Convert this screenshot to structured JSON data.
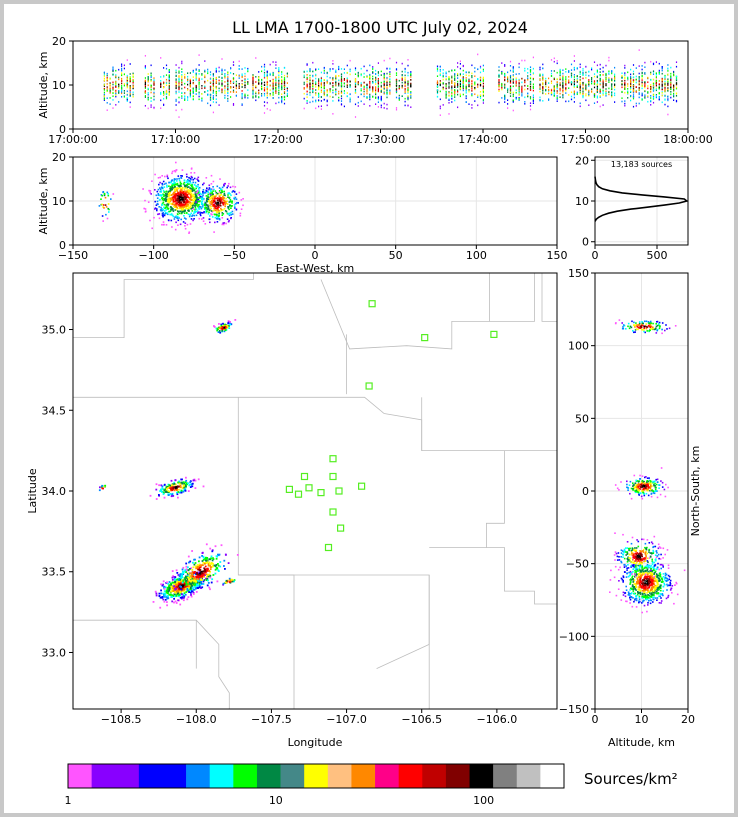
{
  "title": "LL LMA 1700-1800 UTC July 02, 2024",
  "source_count_label": "13,183 sources",
  "colorbar": {
    "label": "Sources/km²",
    "tick_labels": [
      "1",
      "10",
      "100"
    ],
    "tick_values": [
      1,
      10,
      100
    ],
    "colors": [
      "#ff55ff",
      "#8800ff",
      "#8800ff",
      "#0000ff",
      "#0000ff",
      "#0088ff",
      "#00ffff",
      "#00ff00",
      "#008844",
      "#448888",
      "#ffff00",
      "#ffc080",
      "#ff8800",
      "#ff0088",
      "#ff0000",
      "#c00000",
      "#800000",
      "#000000",
      "#808080",
      "#c0c0c0",
      "#ffffff"
    ]
  },
  "chart_data": [
    {
      "name_id": "time-height",
      "type": "scatter",
      "xlabel": "",
      "ylabel": "Altitude, km",
      "x_tick_labels": [
        "17:00:00",
        "17:10:00",
        "17:20:00",
        "17:30:00",
        "17:40:00",
        "17:50:00",
        "18:00:00"
      ],
      "x_range_minutes": [
        0,
        60
      ],
      "ylim": [
        0,
        20
      ],
      "y_ticks": [
        0,
        10,
        20
      ],
      "active_minutes": [
        [
          3,
          6
        ],
        [
          7,
          8
        ],
        [
          8.5,
          9.5
        ],
        [
          10,
          17
        ],
        [
          17.5,
          21
        ],
        [
          22.5,
          27
        ],
        [
          27.5,
          31
        ],
        [
          31.5,
          33
        ],
        [
          35.5,
          40
        ],
        [
          41.5,
          45
        ],
        [
          45.5,
          53
        ],
        [
          53.5,
          59
        ]
      ]
    },
    {
      "name_id": "ew-height",
      "type": "scatter",
      "xlabel": "East-West, km",
      "ylabel": "Altitude, km",
      "xlim": [
        -150,
        150
      ],
      "x_ticks": [
        -150,
        -100,
        -50,
        0,
        50,
        100,
        150
      ],
      "ylim": [
        0,
        20
      ],
      "y_ticks": [
        0,
        10,
        20
      ],
      "clusters": [
        {
          "x": -83,
          "z": 10.5,
          "sx": 8,
          "sz": 2.5,
          "n": 900
        },
        {
          "x": -60,
          "z": 9.5,
          "sx": 6,
          "sz": 2,
          "n": 350
        },
        {
          "x": -130,
          "z": 9.5,
          "sx": 2,
          "sz": 1.5,
          "n": 30
        }
      ]
    },
    {
      "name_id": "altitude-histogram",
      "type": "line",
      "xlim": [
        0,
        750
      ],
      "x_ticks": [
        0,
        500
      ],
      "ylim": [
        0,
        20
      ],
      "y_ticks": [
        0,
        10,
        20
      ],
      "z": [
        5,
        5.5,
        6,
        6.5,
        7,
        7.5,
        8,
        8.5,
        9,
        9.5,
        10,
        10.5,
        11,
        11.5,
        12,
        12.5,
        13,
        13.5,
        14,
        14.5,
        15,
        16
      ],
      "count": [
        0,
        10,
        30,
        60,
        110,
        180,
        290,
        430,
        560,
        680,
        740,
        720,
        560,
        380,
        220,
        120,
        60,
        30,
        15,
        8,
        4,
        0
      ]
    },
    {
      "name_id": "plan-view",
      "type": "scatter",
      "xlabel": "Longitude",
      "ylabel": "Latitude",
      "xlim": [
        -108.82,
        -105.6
      ],
      "x_ticks": [
        -108.5,
        -108.0,
        -107.5,
        -107.0,
        -106.5,
        -106.0
      ],
      "x_tick_labels": [
        "−108.5",
        "−108.0",
        "−107.5",
        "−107.0",
        "−106.5",
        "−106.0"
      ],
      "ylim": [
        32.65,
        35.35
      ],
      "y_ticks": [
        33.0,
        33.5,
        34.0,
        34.5,
        35.0
      ],
      "y_tick_labels": [
        "33.0",
        "33.5",
        "34.0",
        "34.5",
        "35.0"
      ],
      "stations": [
        [
          -106.83,
          35.16
        ],
        [
          -106.48,
          34.95
        ],
        [
          -106.02,
          34.97
        ],
        [
          -106.85,
          34.65
        ],
        [
          -107.09,
          34.2
        ],
        [
          -107.28,
          34.09
        ],
        [
          -107.09,
          34.09
        ],
        [
          -107.38,
          34.01
        ],
        [
          -107.25,
          34.02
        ],
        [
          -107.32,
          33.98
        ],
        [
          -107.17,
          33.99
        ],
        [
          -107.05,
          34.0
        ],
        [
          -106.9,
          34.03
        ],
        [
          -107.09,
          33.87
        ],
        [
          -107.04,
          33.77
        ],
        [
          -107.12,
          33.65
        ]
      ],
      "clusters": [
        {
          "lon": -108.1,
          "lat": 33.41,
          "slon": 0.06,
          "slat": 0.04,
          "n": 500
        },
        {
          "lon": -107.97,
          "lat": 33.5,
          "slon": 0.07,
          "slat": 0.06,
          "n": 300
        },
        {
          "lon": -108.14,
          "lat": 34.02,
          "slon": 0.05,
          "slat": 0.025,
          "n": 170
        },
        {
          "lon": -107.82,
          "lat": 35.01,
          "slon": 0.025,
          "slat": 0.015,
          "n": 70
        },
        {
          "lon": -107.78,
          "lat": 33.44,
          "slon": 0.02,
          "slat": 0.01,
          "n": 25
        },
        {
          "lon": -108.62,
          "lat": 34.02,
          "slon": 0.01,
          "slat": 0.01,
          "n": 10
        }
      ]
    },
    {
      "name_id": "ns-height",
      "type": "scatter",
      "xlabel": "Altitude, km",
      "ylabel": "North-South, km",
      "xlim": [
        0,
        20
      ],
      "x_ticks": [
        0,
        10,
        20
      ],
      "ylim": [
        -150,
        150
      ],
      "y_ticks": [
        -150,
        -100,
        -50,
        0,
        50,
        100,
        150
      ],
      "clusters": [
        {
          "z": 11,
          "y": -63,
          "sz": 2.5,
          "sy": 7,
          "n": 700
        },
        {
          "z": 9.5,
          "y": -45,
          "sz": 2.2,
          "sy": 5,
          "n": 250
        },
        {
          "z": 10.5,
          "y": 3,
          "sz": 2,
          "sy": 3,
          "n": 220
        },
        {
          "z": 10.5,
          "y": 113,
          "sz": 2.5,
          "sy": 2,
          "n": 120
        }
      ]
    }
  ]
}
